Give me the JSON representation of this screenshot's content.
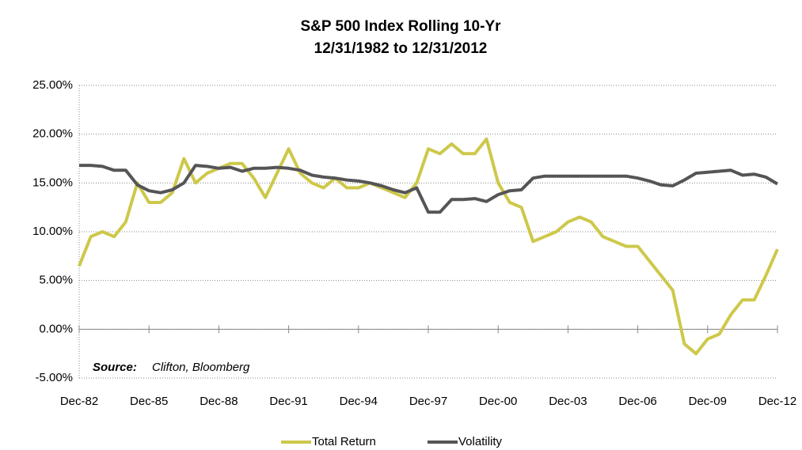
{
  "chart_data": {
    "type": "line",
    "title": "S&P 500 Index Rolling 10-Yr",
    "subtitle": "12/31/1982 to   12/31/2012",
    "source_label": "Source:",
    "source_text": "Clifton, Bloomberg",
    "x": [
      1982.92,
      1983.42,
      1983.92,
      1984.42,
      1984.92,
      1985.42,
      1985.92,
      1986.42,
      1986.92,
      1987.42,
      1987.92,
      1988.42,
      1988.92,
      1989.42,
      1989.92,
      1990.42,
      1990.92,
      1991.42,
      1991.92,
      1992.42,
      1992.92,
      1993.42,
      1993.92,
      1994.42,
      1994.92,
      1995.42,
      1995.92,
      1996.42,
      1996.92,
      1997.42,
      1997.92,
      1998.42,
      1998.92,
      1999.42,
      1999.92,
      2000.42,
      2000.92,
      2001.42,
      2001.92,
      2002.42,
      2002.92,
      2003.42,
      2003.92,
      2004.42,
      2004.92,
      2005.42,
      2005.92,
      2006.42,
      2006.92,
      2007.42,
      2007.92,
      2008.42,
      2008.92,
      2009.42,
      2009.92,
      2010.42,
      2010.92,
      2011.42,
      2011.92,
      2012.42,
      2012.92
    ],
    "series": [
      {
        "name": "Total Return",
        "color": "#cdc84a",
        "values": [
          6.5,
          9.5,
          10,
          9.5,
          11,
          15,
          13,
          13,
          14,
          17.5,
          15,
          16,
          16.5,
          17,
          17,
          15.5,
          13.5,
          16,
          18.5,
          16,
          15,
          14.5,
          15.5,
          14.5,
          14.5,
          15,
          14.5,
          14,
          13.5,
          15,
          18.5,
          18,
          19,
          18,
          18,
          19.5,
          15,
          13,
          12.5,
          9,
          9.5,
          10,
          11,
          11.5,
          11,
          9.5,
          9,
          8.5,
          8.5,
          7,
          5.5,
          4,
          -1.5,
          -2.5,
          -1,
          -0.5,
          1.5,
          3,
          3,
          5.5,
          8.2
        ]
      },
      {
        "name": "Volatility",
        "color": "#555558",
        "values": [
          16.8,
          16.8,
          16.7,
          16.3,
          16.3,
          14.8,
          14.2,
          14,
          14.3,
          15,
          16.8,
          16.7,
          16.5,
          16.6,
          16.2,
          16.5,
          16.5,
          16.6,
          16.5,
          16.3,
          15.8,
          15.6,
          15.5,
          15.3,
          15.2,
          15,
          14.7,
          14.3,
          14,
          14.5,
          12,
          12,
          13.3,
          13.3,
          13.4,
          13.1,
          13.8,
          14.2,
          14.3,
          15.5,
          15.7,
          15.7,
          15.7,
          15.7,
          15.7,
          15.7,
          15.7,
          15.7,
          15.5,
          15.2,
          14.8,
          14.7,
          15.3,
          16,
          16.1,
          16.2,
          16.3,
          15.8,
          15.9,
          15.6,
          14.9
        ]
      }
    ],
    "xlim": [
      1982.92,
      2012.92
    ],
    "xticks": [
      {
        "value": 1982.92,
        "label": "Dec-82"
      },
      {
        "value": 1985.92,
        "label": "Dec-85"
      },
      {
        "value": 1988.92,
        "label": "Dec-88"
      },
      {
        "value": 1991.92,
        "label": "Dec-91"
      },
      {
        "value": 1994.92,
        "label": "Dec-94"
      },
      {
        "value": 1997.92,
        "label": "Dec-97"
      },
      {
        "value": 2000.92,
        "label": "Dec-00"
      },
      {
        "value": 2003.92,
        "label": "Dec-03"
      },
      {
        "value": 2006.92,
        "label": "Dec-06"
      },
      {
        "value": 2009.92,
        "label": "Dec-09"
      },
      {
        "value": 2012.92,
        "label": "Dec-12"
      }
    ],
    "ylim": [
      -5,
      25
    ],
    "yticks": [
      {
        "value": -5,
        "label": "-5.00%"
      },
      {
        "value": 0,
        "label": "0.00%"
      },
      {
        "value": 5,
        "label": "5.00%"
      },
      {
        "value": 10,
        "label": "10.00%"
      },
      {
        "value": 15,
        "label": "15.00%"
      },
      {
        "value": 20,
        "label": "20.00%"
      },
      {
        "value": 25,
        "label": "25.00%"
      }
    ],
    "grid": true,
    "legend": "bottom"
  }
}
